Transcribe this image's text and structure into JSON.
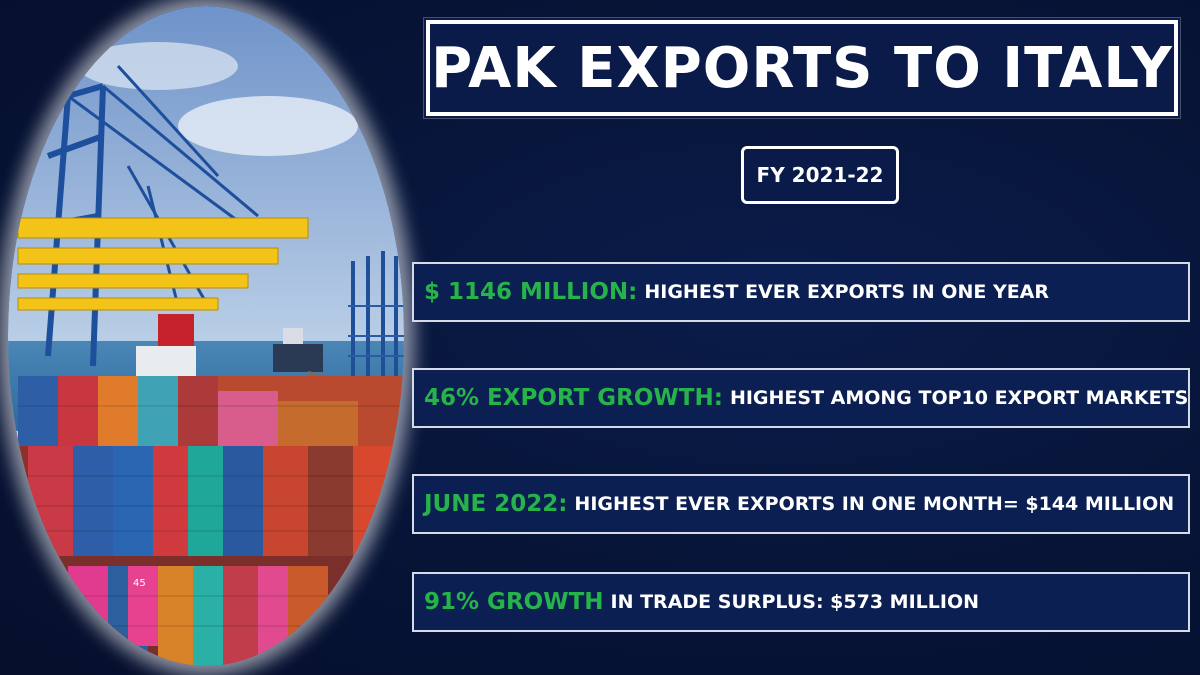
{
  "title": "PAK EXPORTS TO ITALY",
  "fiscal_year": "FY 2021-22",
  "stats": [
    {
      "highlight": "$ 1146 MILLION:",
      "text": "HIGHEST EVER EXPORTS IN ONE YEAR"
    },
    {
      "highlight": "46% EXPORT GROWTH:",
      "text": "HIGHEST AMONG TOP10 EXPORT MARKETS"
    },
    {
      "highlight": "JUNE 2022:",
      "text": "HIGHEST EVER EXPORTS IN ONE MONTH= $144 MILLION"
    },
    {
      "highlight": "91% GROWTH",
      "text": "IN TRADE SURPLUS: $573 MILLION"
    }
  ],
  "colors": {
    "background": "#071437",
    "highlight_green": "#25b34a",
    "text_white": "#ffffff",
    "box_fill": "#0c1f52"
  },
  "photo": {
    "icon": "container-port-photo",
    "container_marking": "45"
  }
}
